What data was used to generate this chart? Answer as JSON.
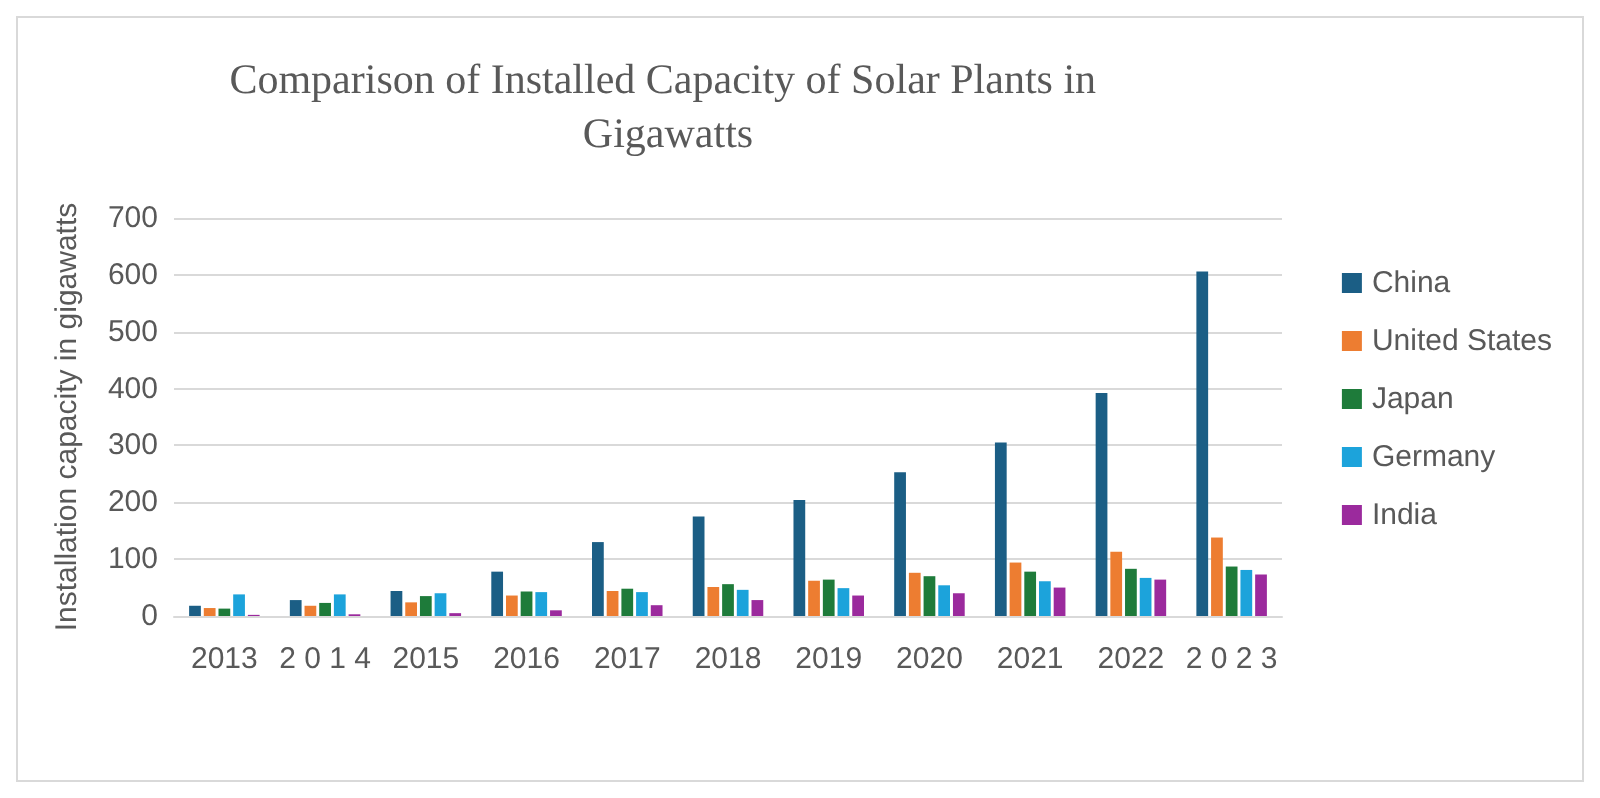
{
  "chart_data": {
    "type": "bar",
    "title": "Comparison of Installed Capacity of Solar Plants in Gigawatts",
    "ylabel": "Installation capacity in gigawatts",
    "categories": [
      "2013",
      "2 0 1 4",
      "2015",
      "2016",
      "2017",
      "2018",
      "2019",
      "2020",
      "2021",
      "2022",
      "2 0 2 3"
    ],
    "series": [
      {
        "name": "China",
        "color": "#1b5e85",
        "values": [
          18,
          28,
          44,
          78,
          130,
          175,
          204,
          253,
          305,
          392,
          606
        ]
      },
      {
        "name": "United States",
        "color": "#ed7d31",
        "values": [
          14,
          18,
          24,
          36,
          44,
          51,
          62,
          76,
          94,
          113,
          138
        ]
      },
      {
        "name": "Japan",
        "color": "#1e7b3a",
        "values": [
          13,
          23,
          35,
          43,
          48,
          56,
          64,
          70,
          78,
          83,
          87
        ]
      },
      {
        "name": "Germany",
        "color": "#1ca3db",
        "values": [
          38,
          38,
          40,
          42,
          42,
          46,
          49,
          54,
          61,
          67,
          81
        ]
      },
      {
        "name": "India",
        "color": "#9b2a9d",
        "values": [
          2,
          3,
          5,
          10,
          19,
          28,
          36,
          40,
          50,
          64,
          73
        ]
      }
    ],
    "ylim": [
      0,
      700
    ],
    "yticks": [
      0,
      100,
      200,
      300,
      400,
      500,
      600,
      700
    ],
    "grid": "y",
    "legend": "right"
  }
}
